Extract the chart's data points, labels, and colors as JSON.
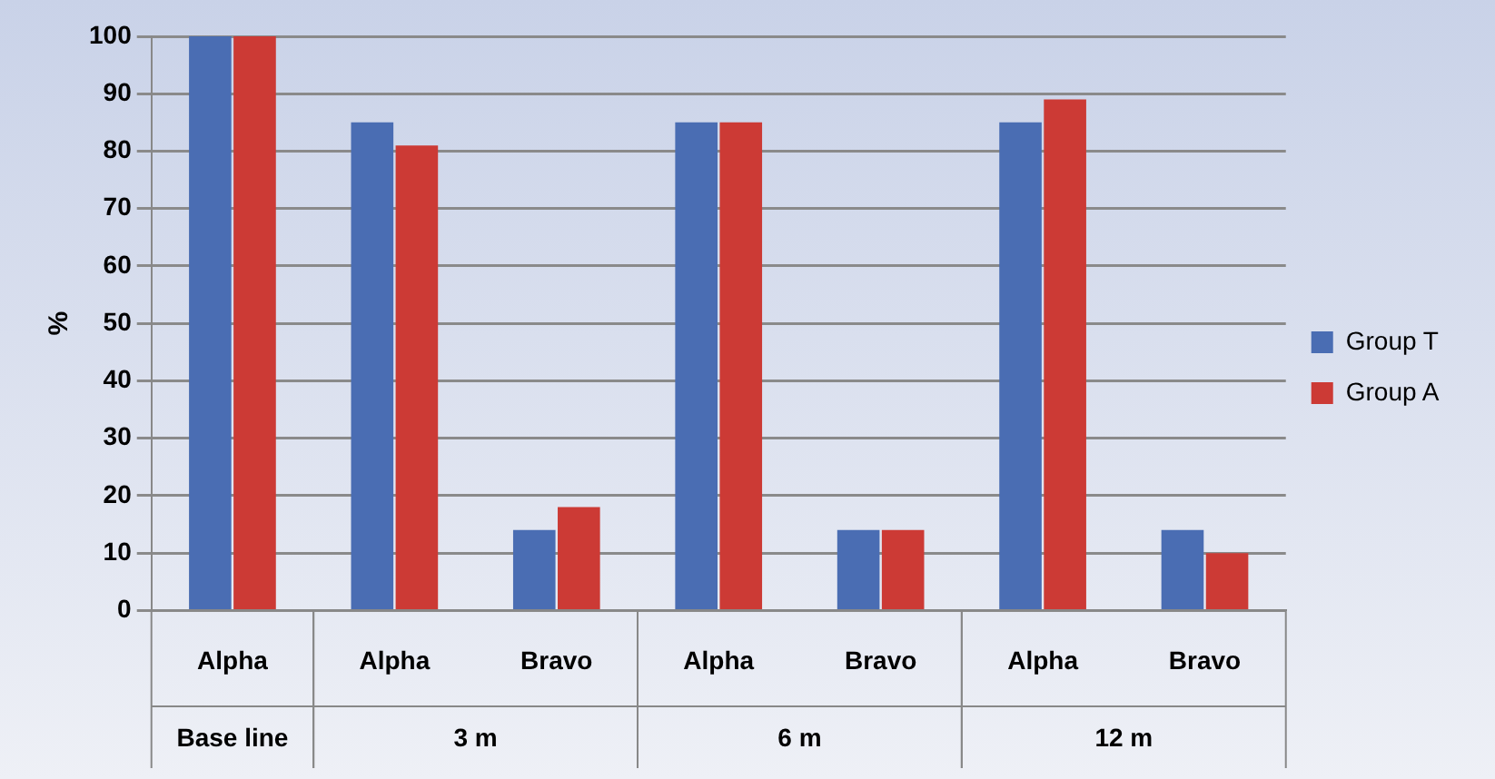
{
  "chart_data": {
    "type": "bar",
    "ylabel": "%",
    "categories": [
      "Alpha",
      "Alpha",
      "Bravo",
      "Alpha",
      "Bravo",
      "Alpha",
      "Bravo"
    ],
    "series": [
      {
        "name": "Group T",
        "color": "#4a6db3",
        "values": [
          100,
          85,
          14,
          85,
          14,
          85,
          14
        ]
      },
      {
        "name": "Group A",
        "color": "#cc3a35",
        "values": [
          100,
          81,
          18,
          85,
          14,
          89,
          10
        ]
      }
    ],
    "annotations": [
      "Base line",
      "3 m",
      "6 m",
      "12 m"
    ],
    "ylim": [
      0,
      100
    ],
    "yticks": [
      0,
      10,
      20,
      30,
      40,
      50,
      60,
      70,
      80,
      90,
      100
    ],
    "grid": "y",
    "legend": "right"
  }
}
